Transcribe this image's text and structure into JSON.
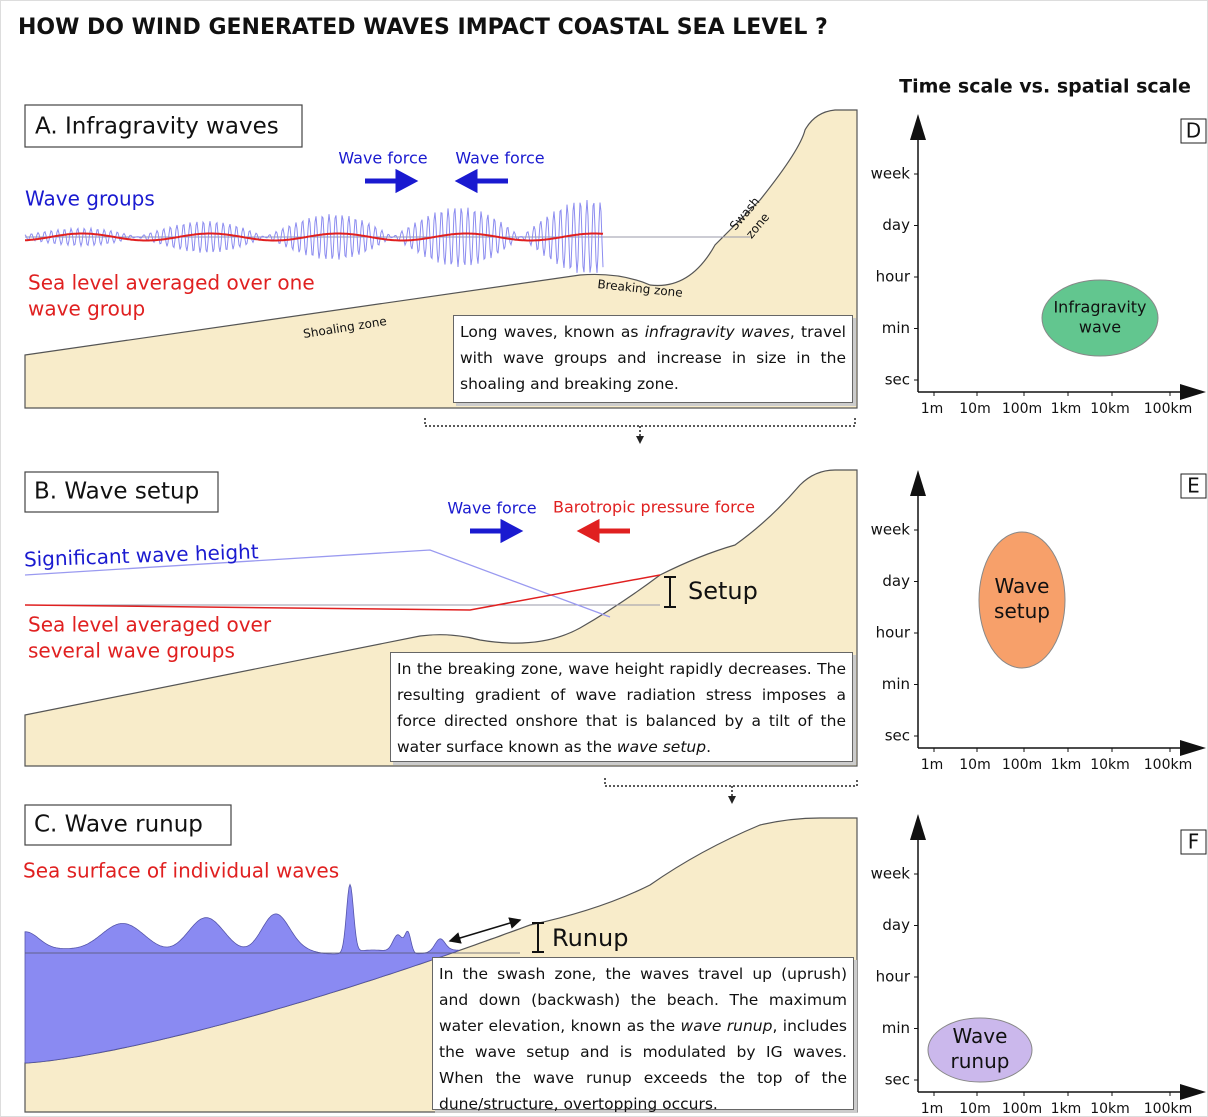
{
  "title": "HOW DO WIND GENERATED WAVES IMPACT COASTAL SEA LEVEL ?",
  "scale_title": "Time scale vs. spatial scale",
  "panels": [
    {
      "label": "A. Infragravity waves",
      "force_left": "Wave force",
      "force_right": "Wave force",
      "blue_text": "Wave groups",
      "red_text": [
        "Sea level averaged over one",
        "wave group"
      ],
      "zones": [
        "Shoaling zone",
        "Breaking zone",
        [
          "Swash",
          "zone"
        ]
      ],
      "description": [
        "Long waves, known as ",
        "infragravity waves",
        ", travel with wave groups and increase in size in the shoaling and breaking zone."
      ]
    },
    {
      "label": "B. Wave setup",
      "force_left": "Wave force",
      "force_right": "Barotropic pressure force",
      "blue_text": "Significant wave height",
      "red_text": [
        "Sea level averaged over",
        "several wave groups"
      ],
      "marker": "Setup",
      "description": [
        "In the breaking zone, wave height rapidly decreases. The resulting gradient of wave radiation stress imposes a force directed onshore that is balanced by a tilt of the water surface known as the ",
        "wave setup",
        "."
      ]
    },
    {
      "label": "C. Wave runup",
      "red_text": "Sea surface of individual waves",
      "marker": "Runup",
      "description": [
        "In the swash zone, the waves travel up (uprush) and down (backwash) the beach. The maximum water elevation, known as the ",
        "wave runup",
        ", includes the wave setup and is modulated by IG waves. When the wave runup exceeds the top of the dune/structure, overtopping occurs."
      ]
    }
  ],
  "scales": {
    "time_labels": [
      "week",
      "day",
      "hour",
      "min",
      "sec"
    ],
    "space_labels": [
      "1m",
      "10m",
      "100m",
      "1km",
      "10km",
      "100km"
    ],
    "charts": [
      {
        "letter": "D",
        "label": [
          "Infragravity",
          "wave"
        ]
      },
      {
        "letter": "E",
        "label": [
          "Wave",
          "setup"
        ]
      },
      {
        "letter": "F",
        "label": [
          "Wave",
          "runup"
        ]
      }
    ]
  }
}
